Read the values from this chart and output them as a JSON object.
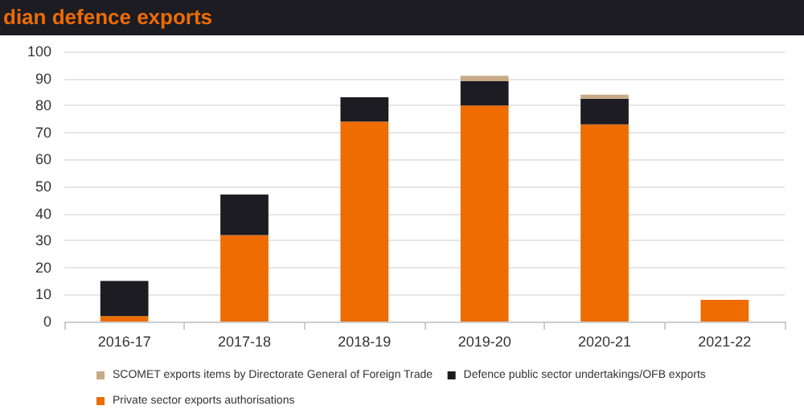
{
  "chart_data": {
    "type": "bar",
    "title": "dian defence exports",
    "categories": [
      "2016-17",
      "2017-18",
      "2018-19",
      "2019-20",
      "2020-21",
      "2021-22"
    ],
    "stacked": true,
    "series": [
      {
        "name": "Private sector exports authorisations",
        "color": "#ee6c00",
        "values": [
          2,
          32,
          74,
          80,
          73,
          8
        ]
      },
      {
        "name": "Defence public sector undertakings/OFB exports",
        "color": "#1c1c22",
        "values": [
          13,
          15,
          9,
          9,
          9.5,
          null
        ]
      },
      {
        "name": "SCOMET exports items by Directorate General of Foreign Trade",
        "color": "#c8aa88",
        "values": [
          null,
          null,
          null,
          2,
          1.5,
          null
        ]
      }
    ],
    "ylim": [
      0,
      100
    ],
    "yticks": [
      0,
      10,
      20,
      30,
      40,
      50,
      60,
      70,
      80,
      90,
      100
    ],
    "grid": "y",
    "legend": "bottom"
  }
}
